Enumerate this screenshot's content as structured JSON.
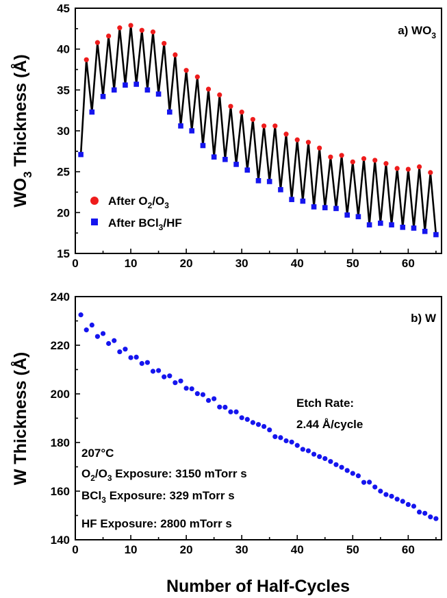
{
  "colors": {
    "after_o2o3": "#ee1c1c",
    "after_bcl3hf": "#1515ee",
    "w_points": "#1515ee",
    "connecting_line": "#000000"
  },
  "xlabel": "Number of Half-Cycles",
  "chart_data": [
    {
      "type": "line",
      "panel_label": {
        "text": "a) WO",
        "sub": "3"
      },
      "ylabel": {
        "prefix": "WO",
        "sub": "3",
        "suffix": " Thickness (Å)"
      },
      "xlabel": "Number of Half-Cycles",
      "xlim": [
        0,
        66
      ],
      "ylim": [
        15,
        45
      ],
      "xticks": [
        "0",
        "10",
        "20",
        "30",
        "40",
        "50",
        "60"
      ],
      "xtick_values": [
        0,
        10,
        20,
        30,
        40,
        50,
        60
      ],
      "yticks": [
        "15",
        "20",
        "25",
        "30",
        "35",
        "40",
        "45"
      ],
      "ytick_values": [
        15,
        20,
        25,
        30,
        35,
        40,
        45
      ],
      "legend": {
        "placement": "lower-left",
        "entries": [
          {
            "parts": [
              "After O",
              "2",
              "/O",
              "3"
            ],
            "marker": "circle"
          },
          {
            "parts": [
              "After BCl",
              "3",
              "/HF"
            ],
            "marker": "square"
          }
        ]
      },
      "series": [
        {
          "name": "After O2/O3",
          "marker": "circle",
          "x": [
            2,
            4,
            6,
            8,
            10,
            12,
            14,
            16,
            18,
            20,
            22,
            24,
            26,
            28,
            30,
            32,
            34,
            36,
            38,
            40,
            42,
            44,
            46,
            48,
            50,
            52,
            54,
            56,
            58,
            60,
            62,
            64
          ],
          "y": [
            38.7,
            40.8,
            41.6,
            42.6,
            42.9,
            42.3,
            42.1,
            40.7,
            39.3,
            37.4,
            36.6,
            35.1,
            34.4,
            33.0,
            32.3,
            31.4,
            30.6,
            30.6,
            29.6,
            28.9,
            28.6,
            27.9,
            26.8,
            27.0,
            26.2,
            26.6,
            26.4,
            26.0,
            25.4,
            25.3,
            25.6,
            24.9
          ]
        },
        {
          "name": "After BCl3/HF",
          "marker": "square",
          "x": [
            1,
            3,
            5,
            7,
            9,
            11,
            13,
            15,
            17,
            19,
            21,
            23,
            25,
            27,
            29,
            31,
            33,
            35,
            37,
            39,
            41,
            43,
            45,
            47,
            49,
            51,
            53,
            55,
            57,
            59,
            61,
            63,
            65
          ],
          "y": [
            27.1,
            32.3,
            34.2,
            35.0,
            35.6,
            35.7,
            35.0,
            34.5,
            32.3,
            30.6,
            30.0,
            28.2,
            26.8,
            26.5,
            25.9,
            25.2,
            23.9,
            23.8,
            22.8,
            21.6,
            21.4,
            20.7,
            20.6,
            20.5,
            19.7,
            19.5,
            18.5,
            18.7,
            18.5,
            18.2,
            18.1,
            17.7,
            17.3
          ]
        }
      ],
      "line": {
        "connects": "all points in half-cycle order",
        "color": "#000000"
      }
    },
    {
      "type": "scatter",
      "panel_label": {
        "text": "b) W"
      },
      "ylabel": {
        "prefix": "W Thickness (Å)"
      },
      "xlabel": "Number of Half-Cycles",
      "xlim": [
        0,
        66
      ],
      "ylim": [
        140,
        240
      ],
      "xticks": [
        "0",
        "10",
        "20",
        "30",
        "40",
        "50",
        "60"
      ],
      "xtick_values": [
        0,
        10,
        20,
        30,
        40,
        50,
        60
      ],
      "yticks": [
        "140",
        "160",
        "180",
        "200",
        "220",
        "240"
      ],
      "ytick_values": [
        140,
        160,
        180,
        200,
        220,
        240
      ],
      "etch_rate": {
        "line1": "Etch Rate:",
        "line2": "2.44 Å/cycle"
      },
      "conditions": {
        "temperature": "207°C",
        "o2o3": [
          "O",
          "2",
          "/O",
          "3",
          " Exposure: 3150 mTorr s"
        ],
        "bcl3": [
          "BCl",
          "3",
          " Exposure: 329 mTorr s"
        ],
        "hf": "HF Exposure: 2800 mTorr s"
      },
      "series": [
        {
          "name": "W",
          "marker": "circle",
          "x": [
            1,
            2,
            3,
            4,
            5,
            6,
            7,
            8,
            9,
            10,
            11,
            12,
            13,
            14,
            15,
            16,
            17,
            18,
            19,
            20,
            21,
            22,
            23,
            24,
            25,
            26,
            27,
            28,
            29,
            30,
            31,
            32,
            33,
            34,
            35,
            36,
            37,
            38,
            39,
            40,
            41,
            42,
            43,
            44,
            45,
            46,
            47,
            48,
            49,
            50,
            51,
            52,
            53,
            54,
            55,
            56,
            57,
            58,
            59,
            60,
            61,
            62,
            63,
            64,
            65
          ],
          "y": [
            232.5,
            226.3,
            228.3,
            223.6,
            224.8,
            220.7,
            221.9,
            217.3,
            218.4,
            214.9,
            215.1,
            212.5,
            212.9,
            209.3,
            209.6,
            207.0,
            207.4,
            204.6,
            205.3,
            202.3,
            202.1,
            200.1,
            199.7,
            197.3,
            198.0,
            194.6,
            194.5,
            192.6,
            192.6,
            190.2,
            189.5,
            188.2,
            187.4,
            186.6,
            185.2,
            182.4,
            182.0,
            180.7,
            180.2,
            178.8,
            177.2,
            176.6,
            175.2,
            174.2,
            173.4,
            172.2,
            170.9,
            169.8,
            168.5,
            167.3,
            166.3,
            163.6,
            163.7,
            161.7,
            160.0,
            158.6,
            157.9,
            156.7,
            155.8,
            154.5,
            153.8,
            151.4,
            150.9,
            149.4,
            148.7
          ]
        }
      ]
    }
  ]
}
